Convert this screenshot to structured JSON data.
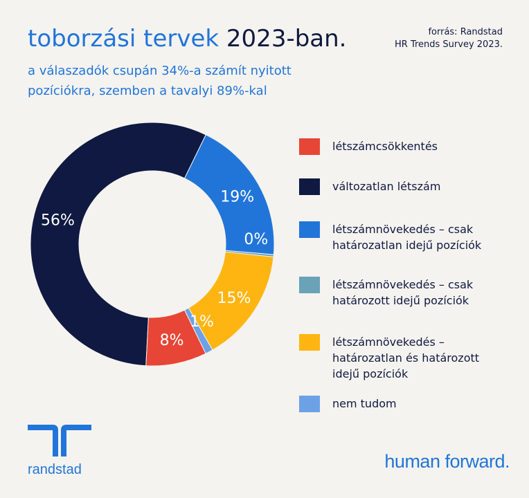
{
  "header": {
    "title_part1": "toborzási tervek",
    "title_part2": "2023-ban.",
    "subtitle": "a válaszadók csupán 34%-a számít nyitott pozíciókra, szemben a tavalyi 89%-kal",
    "source_line1": "forrás: Randstad",
    "source_line2": "HR Trends Survey 2023."
  },
  "chart_data": {
    "type": "donut",
    "unit": "%",
    "slices": [
      {
        "label": "létszámcsökkentés",
        "value": 8,
        "display": "8%",
        "color": "#e74536"
      },
      {
        "label": "változatlan létszám",
        "value": 56,
        "display": "56%",
        "color": "#0f1941"
      },
      {
        "label": "létszámnövekedés – csak határozatlan idejű pozíciók",
        "value": 19,
        "display": "19%",
        "color": "#2175d9"
      },
      {
        "label": "létszámnövekedés – csak határozott idejű pozíciók",
        "value": 0.3,
        "display": "0%",
        "color": "#6aa2b8"
      },
      {
        "label": "létszámnövekedés – határozatlan és határozott idejű pozíciók",
        "value": 15,
        "display": "15%",
        "color": "#ffb511"
      },
      {
        "label": "nem tudom",
        "value": 1,
        "display": "1%",
        "color": "#6ca1e6"
      }
    ],
    "start_slice": "nem tudom",
    "direction": "counterclockwise",
    "legend_position": "right"
  },
  "legend_order": [
    0,
    1,
    2,
    3,
    4,
    5
  ],
  "legend_lines": [
    [
      "létszámcsökkentés"
    ],
    [
      "változatlan létszám"
    ],
    [
      "létszámnövekedés – csak",
      "határozatlan idejű pozíciók"
    ],
    [
      "létszámnövekedés – csak",
      "határozott idejű pozíciók"
    ],
    [
      "létszámnövekedés –",
      "határozatlan és határozott",
      "idejű pozíciók"
    ],
    [
      "nem tudom"
    ]
  ],
  "footer": {
    "logo_word": "randstad",
    "tagline": "human forward."
  }
}
